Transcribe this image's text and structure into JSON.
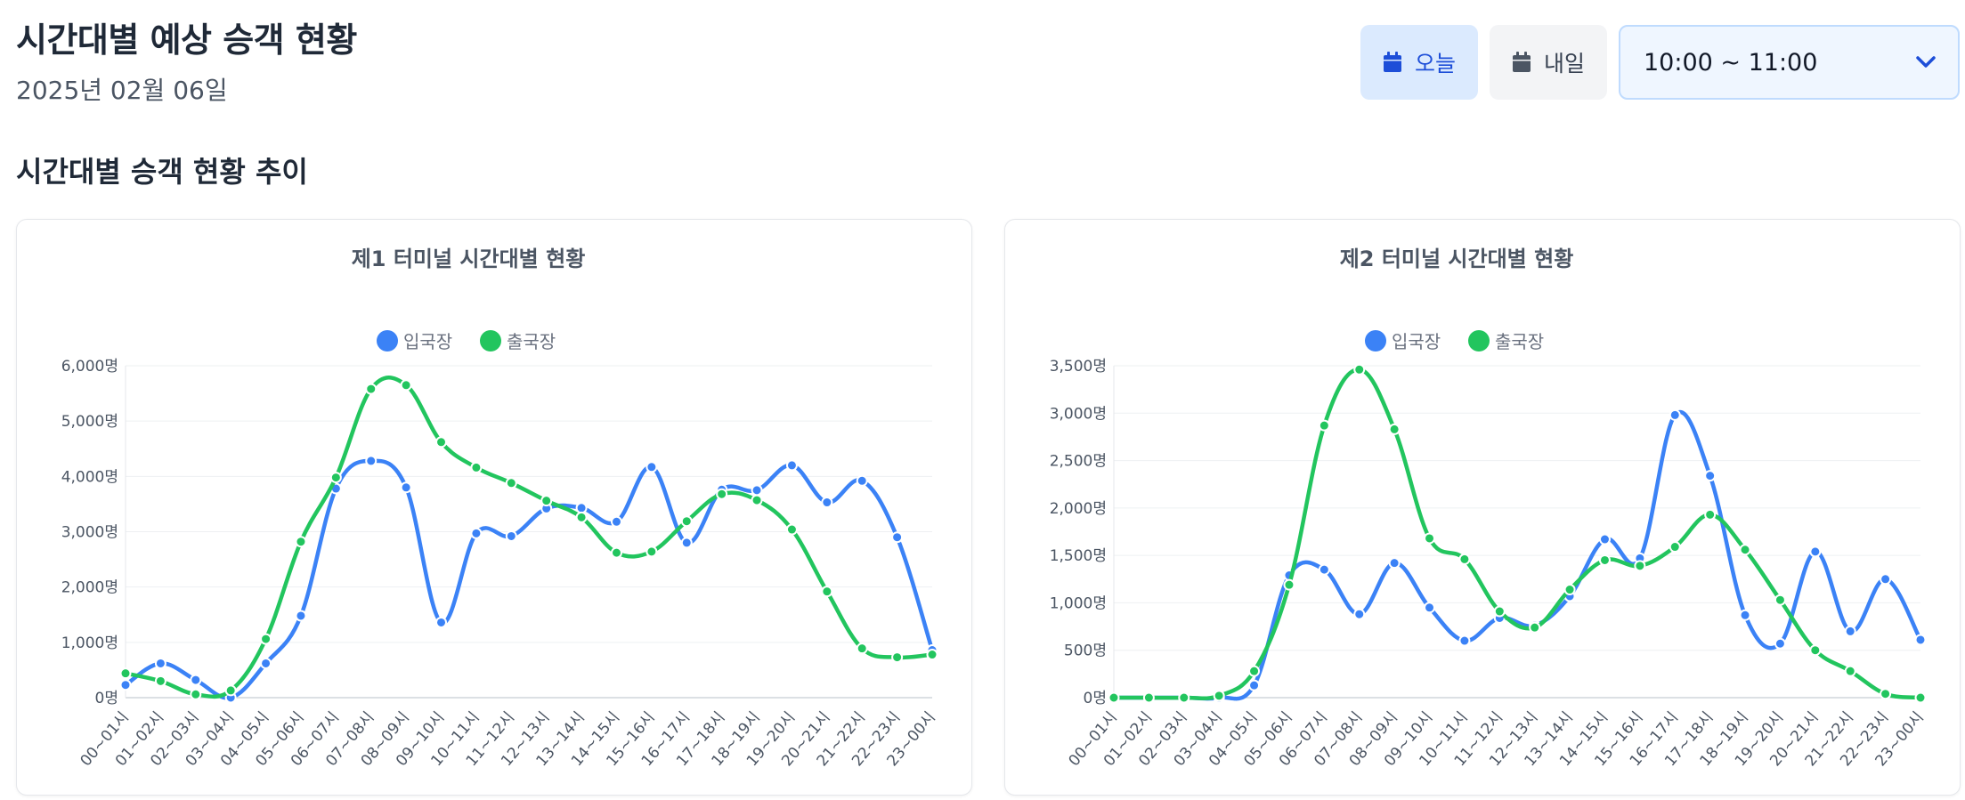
{
  "header": {
    "title": "시간대별 예상 승객 현황",
    "date": "2025년 02월 06일"
  },
  "toolbar": {
    "today_label": "오늘",
    "tomorrow_label": "내일",
    "time_range": "10:00 ~ 11:00"
  },
  "section": {
    "title": "시간대별 승객 현황 추이"
  },
  "colors": {
    "arrival": "#3b82f6",
    "departure": "#22c55e"
  },
  "chart_data": [
    {
      "type": "line",
      "title": "제1 터미널 시간대별 현황",
      "categories": [
        "00~01시",
        "01~02시",
        "02~03시",
        "03~04시",
        "04~05시",
        "05~06시",
        "06~07시",
        "07~08시",
        "08~09시",
        "09~10시",
        "10~11시",
        "11~12시",
        "12~13시",
        "13~14시",
        "14~15시",
        "15~16시",
        "16~17시",
        "17~18시",
        "18~19시",
        "19~20시",
        "20~21시",
        "21~22시",
        "22~23시",
        "23~00시"
      ],
      "y_ticks": [
        "0명",
        "1,000명",
        "2,000명",
        "3,000명",
        "4,000명",
        "5,000명",
        "6,000명"
      ],
      "ylim": [
        0,
        6000
      ],
      "legend": "top-center",
      "grid": true,
      "series": [
        {
          "name": "입국장",
          "color": "#3b82f6",
          "values": [
            230,
            620,
            320,
            0,
            620,
            1480,
            3780,
            4280,
            3800,
            1360,
            2970,
            2920,
            3420,
            3430,
            3180,
            4170,
            2800,
            3760,
            3750,
            4200,
            3530,
            3920,
            2900,
            860
          ]
        },
        {
          "name": "출국장",
          "color": "#22c55e",
          "values": [
            440,
            300,
            60,
            130,
            1060,
            2820,
            3980,
            5580,
            5650,
            4620,
            4160,
            3880,
            3560,
            3260,
            2620,
            2640,
            3190,
            3680,
            3570,
            3040,
            1920,
            890,
            730,
            780
          ]
        }
      ]
    },
    {
      "type": "line",
      "title": "제2 터미널 시간대별 현황",
      "categories": [
        "00~01시",
        "01~02시",
        "02~03시",
        "03~04시",
        "04~05시",
        "05~06시",
        "06~07시",
        "07~08시",
        "08~09시",
        "09~10시",
        "10~11시",
        "11~12시",
        "12~13시",
        "13~14시",
        "14~15시",
        "15~16시",
        "16~17시",
        "17~18시",
        "18~19시",
        "19~20시",
        "20~21시",
        "21~22시",
        "22~23시",
        "23~00시"
      ],
      "y_ticks": [
        "0명",
        "500명",
        "1,000명",
        "1,500명",
        "2,000명",
        "2,500명",
        "3,000명",
        "3,500명"
      ],
      "ylim": [
        0,
        3500
      ],
      "legend": "top-center",
      "grid": true,
      "series": [
        {
          "name": "입국장",
          "color": "#3b82f6",
          "values": [
            0,
            0,
            0,
            0,
            130,
            1290,
            1350,
            880,
            1420,
            950,
            600,
            840,
            760,
            1070,
            1670,
            1470,
            2980,
            2340,
            870,
            570,
            1540,
            700,
            1250,
            610
          ]
        },
        {
          "name": "출국장",
          "color": "#22c55e",
          "values": [
            0,
            0,
            0,
            20,
            280,
            1190,
            2870,
            3460,
            2830,
            1680,
            1460,
            910,
            740,
            1140,
            1450,
            1390,
            1590,
            1930,
            1560,
            1030,
            500,
            280,
            40,
            0
          ]
        }
      ]
    }
  ]
}
